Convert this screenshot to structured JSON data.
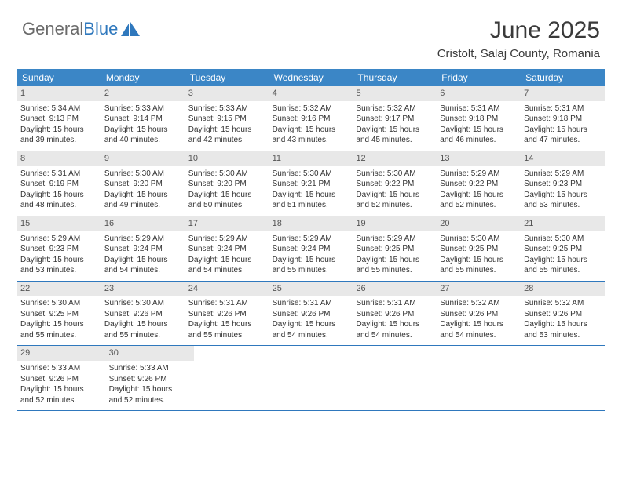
{
  "logo": {
    "part1": "General",
    "part2": "Blue"
  },
  "title": "June 2025",
  "location": "Cristolt, Salaj County, Romania",
  "colors": {
    "header_bg": "#3b86c6",
    "header_text": "#ffffff",
    "border": "#2f78bd",
    "daynum_bg": "#e8e8e8",
    "text": "#333333",
    "logo_gray": "#6a6a6a",
    "logo_blue": "#2f78bd"
  },
  "day_headers": [
    "Sunday",
    "Monday",
    "Tuesday",
    "Wednesday",
    "Thursday",
    "Friday",
    "Saturday"
  ],
  "weeks": [
    [
      {
        "num": "1",
        "sunrise": "Sunrise: 5:34 AM",
        "sunset": "Sunset: 9:13 PM",
        "d1": "Daylight: 15 hours",
        "d2": "and 39 minutes."
      },
      {
        "num": "2",
        "sunrise": "Sunrise: 5:33 AM",
        "sunset": "Sunset: 9:14 PM",
        "d1": "Daylight: 15 hours",
        "d2": "and 40 minutes."
      },
      {
        "num": "3",
        "sunrise": "Sunrise: 5:33 AM",
        "sunset": "Sunset: 9:15 PM",
        "d1": "Daylight: 15 hours",
        "d2": "and 42 minutes."
      },
      {
        "num": "4",
        "sunrise": "Sunrise: 5:32 AM",
        "sunset": "Sunset: 9:16 PM",
        "d1": "Daylight: 15 hours",
        "d2": "and 43 minutes."
      },
      {
        "num": "5",
        "sunrise": "Sunrise: 5:32 AM",
        "sunset": "Sunset: 9:17 PM",
        "d1": "Daylight: 15 hours",
        "d2": "and 45 minutes."
      },
      {
        "num": "6",
        "sunrise": "Sunrise: 5:31 AM",
        "sunset": "Sunset: 9:18 PM",
        "d1": "Daylight: 15 hours",
        "d2": "and 46 minutes."
      },
      {
        "num": "7",
        "sunrise": "Sunrise: 5:31 AM",
        "sunset": "Sunset: 9:18 PM",
        "d1": "Daylight: 15 hours",
        "d2": "and 47 minutes."
      }
    ],
    [
      {
        "num": "8",
        "sunrise": "Sunrise: 5:31 AM",
        "sunset": "Sunset: 9:19 PM",
        "d1": "Daylight: 15 hours",
        "d2": "and 48 minutes."
      },
      {
        "num": "9",
        "sunrise": "Sunrise: 5:30 AM",
        "sunset": "Sunset: 9:20 PM",
        "d1": "Daylight: 15 hours",
        "d2": "and 49 minutes."
      },
      {
        "num": "10",
        "sunrise": "Sunrise: 5:30 AM",
        "sunset": "Sunset: 9:20 PM",
        "d1": "Daylight: 15 hours",
        "d2": "and 50 minutes."
      },
      {
        "num": "11",
        "sunrise": "Sunrise: 5:30 AM",
        "sunset": "Sunset: 9:21 PM",
        "d1": "Daylight: 15 hours",
        "d2": "and 51 minutes."
      },
      {
        "num": "12",
        "sunrise": "Sunrise: 5:30 AM",
        "sunset": "Sunset: 9:22 PM",
        "d1": "Daylight: 15 hours",
        "d2": "and 52 minutes."
      },
      {
        "num": "13",
        "sunrise": "Sunrise: 5:29 AM",
        "sunset": "Sunset: 9:22 PM",
        "d1": "Daylight: 15 hours",
        "d2": "and 52 minutes."
      },
      {
        "num": "14",
        "sunrise": "Sunrise: 5:29 AM",
        "sunset": "Sunset: 9:23 PM",
        "d1": "Daylight: 15 hours",
        "d2": "and 53 minutes."
      }
    ],
    [
      {
        "num": "15",
        "sunrise": "Sunrise: 5:29 AM",
        "sunset": "Sunset: 9:23 PM",
        "d1": "Daylight: 15 hours",
        "d2": "and 53 minutes."
      },
      {
        "num": "16",
        "sunrise": "Sunrise: 5:29 AM",
        "sunset": "Sunset: 9:24 PM",
        "d1": "Daylight: 15 hours",
        "d2": "and 54 minutes."
      },
      {
        "num": "17",
        "sunrise": "Sunrise: 5:29 AM",
        "sunset": "Sunset: 9:24 PM",
        "d1": "Daylight: 15 hours",
        "d2": "and 54 minutes."
      },
      {
        "num": "18",
        "sunrise": "Sunrise: 5:29 AM",
        "sunset": "Sunset: 9:24 PM",
        "d1": "Daylight: 15 hours",
        "d2": "and 55 minutes."
      },
      {
        "num": "19",
        "sunrise": "Sunrise: 5:29 AM",
        "sunset": "Sunset: 9:25 PM",
        "d1": "Daylight: 15 hours",
        "d2": "and 55 minutes."
      },
      {
        "num": "20",
        "sunrise": "Sunrise: 5:30 AM",
        "sunset": "Sunset: 9:25 PM",
        "d1": "Daylight: 15 hours",
        "d2": "and 55 minutes."
      },
      {
        "num": "21",
        "sunrise": "Sunrise: 5:30 AM",
        "sunset": "Sunset: 9:25 PM",
        "d1": "Daylight: 15 hours",
        "d2": "and 55 minutes."
      }
    ],
    [
      {
        "num": "22",
        "sunrise": "Sunrise: 5:30 AM",
        "sunset": "Sunset: 9:25 PM",
        "d1": "Daylight: 15 hours",
        "d2": "and 55 minutes."
      },
      {
        "num": "23",
        "sunrise": "Sunrise: 5:30 AM",
        "sunset": "Sunset: 9:26 PM",
        "d1": "Daylight: 15 hours",
        "d2": "and 55 minutes."
      },
      {
        "num": "24",
        "sunrise": "Sunrise: 5:31 AM",
        "sunset": "Sunset: 9:26 PM",
        "d1": "Daylight: 15 hours",
        "d2": "and 55 minutes."
      },
      {
        "num": "25",
        "sunrise": "Sunrise: 5:31 AM",
        "sunset": "Sunset: 9:26 PM",
        "d1": "Daylight: 15 hours",
        "d2": "and 54 minutes."
      },
      {
        "num": "26",
        "sunrise": "Sunrise: 5:31 AM",
        "sunset": "Sunset: 9:26 PM",
        "d1": "Daylight: 15 hours",
        "d2": "and 54 minutes."
      },
      {
        "num": "27",
        "sunrise": "Sunrise: 5:32 AM",
        "sunset": "Sunset: 9:26 PM",
        "d1": "Daylight: 15 hours",
        "d2": "and 54 minutes."
      },
      {
        "num": "28",
        "sunrise": "Sunrise: 5:32 AM",
        "sunset": "Sunset: 9:26 PM",
        "d1": "Daylight: 15 hours",
        "d2": "and 53 minutes."
      }
    ],
    [
      {
        "num": "29",
        "sunrise": "Sunrise: 5:33 AM",
        "sunset": "Sunset: 9:26 PM",
        "d1": "Daylight: 15 hours",
        "d2": "and 52 minutes."
      },
      {
        "num": "30",
        "sunrise": "Sunrise: 5:33 AM",
        "sunset": "Sunset: 9:26 PM",
        "d1": "Daylight: 15 hours",
        "d2": "and 52 minutes."
      },
      null,
      null,
      null,
      null,
      null
    ]
  ]
}
